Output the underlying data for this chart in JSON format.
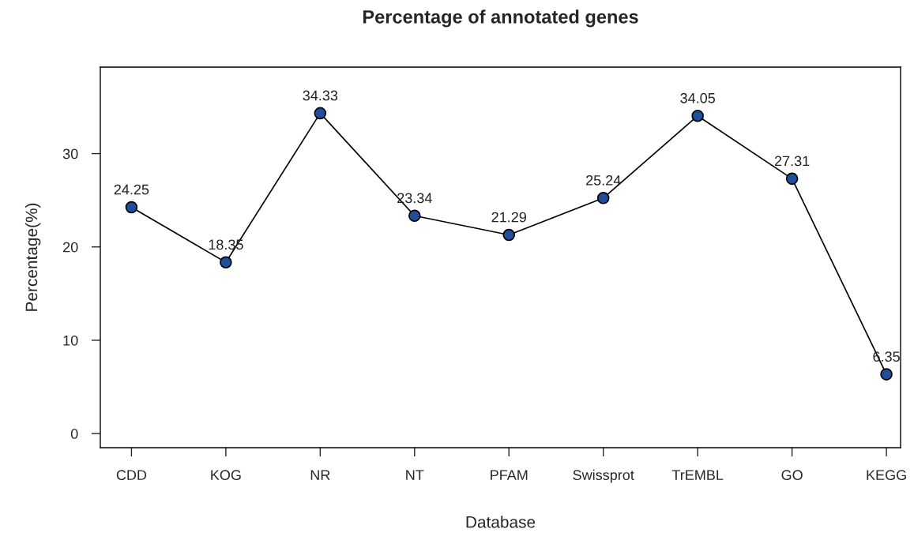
{
  "chart_data": {
    "type": "line",
    "title": "Percentage of annotated genes",
    "xlabel": "Database",
    "ylabel": "Percentage(%)",
    "categories": [
      "CDD",
      "KOG",
      "NR",
      "NT",
      "PFAM",
      "Swissprot",
      "TrEMBL",
      "GO",
      "KEGG"
    ],
    "series": [
      {
        "color": "#1f4e9c",
        "values": [
          24.25,
          18.35,
          34.33,
          23.34,
          21.29,
          25.24,
          34.05,
          27.31,
          6.35
        ]
      }
    ],
    "ylim": [
      -1.51,
      39.27
    ],
    "yticks": [
      0,
      10,
      20,
      30
    ],
    "data_labels": true,
    "grid": false,
    "marker": "circle",
    "line_style": "solid"
  }
}
